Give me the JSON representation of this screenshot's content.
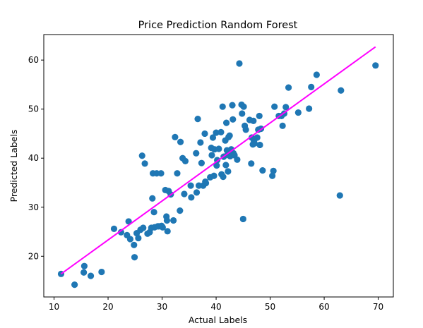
{
  "chart_data": {
    "type": "scatter",
    "title": "Price Prediction Random Forest",
    "xlabel": "Actual Labels",
    "ylabel": "Predicted Labels",
    "xlim": [
      8.1,
      72.8
    ],
    "ylim": [
      11.7,
      65.2
    ],
    "xticks": [
      10,
      20,
      30,
      40,
      50,
      60,
      70
    ],
    "yticks": [
      20,
      30,
      40,
      50,
      60
    ],
    "grid": false,
    "point_color": "#1f77b4",
    "trend_color": "#ff00ff",
    "trend_line": {
      "points": [
        [
          11.3,
          16.4
        ],
        [
          69.5,
          62.7
        ]
      ]
    },
    "points": [
      [
        11.3,
        16.4
      ],
      [
        13.8,
        14.2
      ],
      [
        15.5,
        16.7
      ],
      [
        15.6,
        18.0
      ],
      [
        16.8,
        16.0
      ],
      [
        18.8,
        16.8
      ],
      [
        21.1,
        25.6
      ],
      [
        22.4,
        24.9
      ],
      [
        23.5,
        24.3
      ],
      [
        23.8,
        27.1
      ],
      [
        24.1,
        23.5
      ],
      [
        24.8,
        22.3
      ],
      [
        24.9,
        19.8
      ],
      [
        25.3,
        24.7
      ],
      [
        25.6,
        23.7
      ],
      [
        26.0,
        25.4
      ],
      [
        26.3,
        40.5
      ],
      [
        26.5,
        25.8
      ],
      [
        26.8,
        38.9
      ],
      [
        27.3,
        24.6
      ],
      [
        27.7,
        24.9
      ],
      [
        28.0,
        25.8
      ],
      [
        28.2,
        31.8
      ],
      [
        28.3,
        36.9
      ],
      [
        28.5,
        29.0
      ],
      [
        28.6,
        25.9
      ],
      [
        29.0,
        36.9
      ],
      [
        29.2,
        26.1
      ],
      [
        29.4,
        26.1
      ],
      [
        29.8,
        36.9
      ],
      [
        29.9,
        26.2
      ],
      [
        30.1,
        25.9
      ],
      [
        30.6,
        33.5
      ],
      [
        30.8,
        28.1
      ],
      [
        30.9,
        27.3
      ],
      [
        31.0,
        25.1
      ],
      [
        31.2,
        33.3
      ],
      [
        31.6,
        32.6
      ],
      [
        32.1,
        27.3
      ],
      [
        32.4,
        44.3
      ],
      [
        32.8,
        36.9
      ],
      [
        33.3,
        29.3
      ],
      [
        33.4,
        43.3
      ],
      [
        33.8,
        40.0
      ],
      [
        34.1,
        32.7
      ],
      [
        34.3,
        39.4
      ],
      [
        35.3,
        34.4
      ],
      [
        35.4,
        32.0
      ],
      [
        36.3,
        41.0
      ],
      [
        36.4,
        33.0
      ],
      [
        36.6,
        48.0
      ],
      [
        36.8,
        34.4
      ],
      [
        37.1,
        43.2
      ],
      [
        37.3,
        39.0
      ],
      [
        37.6,
        34.4
      ],
      [
        37.9,
        45.0
      ],
      [
        38.0,
        35.2
      ],
      [
        38.1,
        34.9
      ],
      [
        38.9,
        36.1
      ],
      [
        39.1,
        42.1
      ],
      [
        39.2,
        40.6
      ],
      [
        39.4,
        44.2
      ],
      [
        39.6,
        36.4
      ],
      [
        39.7,
        41.8
      ],
      [
        40.0,
        45.2
      ],
      [
        40.1,
        38.5
      ],
      [
        40.2,
        39.6
      ],
      [
        40.5,
        41.9
      ],
      [
        40.9,
        45.3
      ],
      [
        41.0,
        36.7
      ],
      [
        41.2,
        50.5
      ],
      [
        41.3,
        36.2
      ],
      [
        41.4,
        40.3
      ],
      [
        41.7,
        43.6
      ],
      [
        41.8,
        38.6
      ],
      [
        41.9,
        47.2
      ],
      [
        42.0,
        41.6
      ],
      [
        42.1,
        40.7
      ],
      [
        42.2,
        37.3
      ],
      [
        42.3,
        44.3
      ],
      [
        42.5,
        44.6
      ],
      [
        42.6,
        40.4
      ],
      [
        42.8,
        41.8
      ],
      [
        43.0,
        50.8
      ],
      [
        43.1,
        47.9
      ],
      [
        43.2,
        41.0
      ],
      [
        43.4,
        40.6
      ],
      [
        43.9,
        39.7
      ],
      [
        44.3,
        59.3
      ],
      [
        44.7,
        50.9
      ],
      [
        44.8,
        49.1
      ],
      [
        45.0,
        27.6
      ],
      [
        45.1,
        50.5
      ],
      [
        45.3,
        46.6
      ],
      [
        45.5,
        45.8
      ],
      [
        46.2,
        47.8
      ],
      [
        46.5,
        38.9
      ],
      [
        46.6,
        44.2
      ],
      [
        46.8,
        42.8
      ],
      [
        46.9,
        47.6
      ],
      [
        47.0,
        43.5
      ],
      [
        47.1,
        43.0
      ],
      [
        47.6,
        44.2
      ],
      [
        47.8,
        45.8
      ],
      [
        48.0,
        48.6
      ],
      [
        48.1,
        42.7
      ],
      [
        48.3,
        46.0
      ],
      [
        48.6,
        37.5
      ],
      [
        50.4,
        36.4
      ],
      [
        50.6,
        37.4
      ],
      [
        50.8,
        50.5
      ],
      [
        51.6,
        48.6
      ],
      [
        52.1,
        48.6
      ],
      [
        52.3,
        46.6
      ],
      [
        52.6,
        49.1
      ],
      [
        52.9,
        50.4
      ],
      [
        53.4,
        54.4
      ],
      [
        55.2,
        49.3
      ],
      [
        57.2,
        50.1
      ],
      [
        57.6,
        54.5
      ],
      [
        58.6,
        57.0
      ],
      [
        62.9,
        32.4
      ],
      [
        63.1,
        53.8
      ],
      [
        69.5,
        58.9
      ]
    ]
  }
}
